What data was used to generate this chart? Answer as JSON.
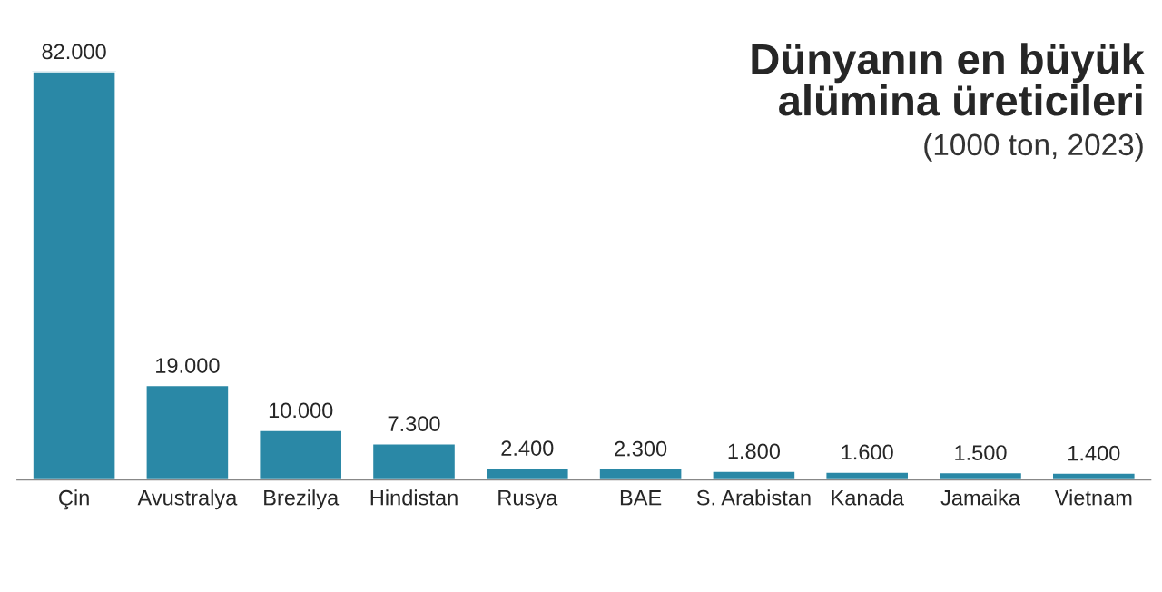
{
  "chart_data": {
    "type": "bar",
    "title": "Dünyanın en büyük\nalümina üreticileri",
    "subtitle": "(1000 ton, 2023)",
    "categories": [
      "Çin",
      "Avustralya",
      "Brezilya",
      "Hindistan",
      "Rusya",
      "BAE",
      "S. Arabistan",
      "Kanada",
      "Jamaika",
      "Vietnam"
    ],
    "values": [
      82000,
      19000,
      10000,
      7300,
      2400,
      2300,
      1800,
      1600,
      1500,
      1400
    ],
    "value_labels": [
      "82.000",
      "19.000",
      "10.000",
      "7.300",
      "2.400",
      "2.300",
      "1.800",
      "1.600",
      "1.500",
      "1.400"
    ],
    "color": "#2a88a6"
  }
}
